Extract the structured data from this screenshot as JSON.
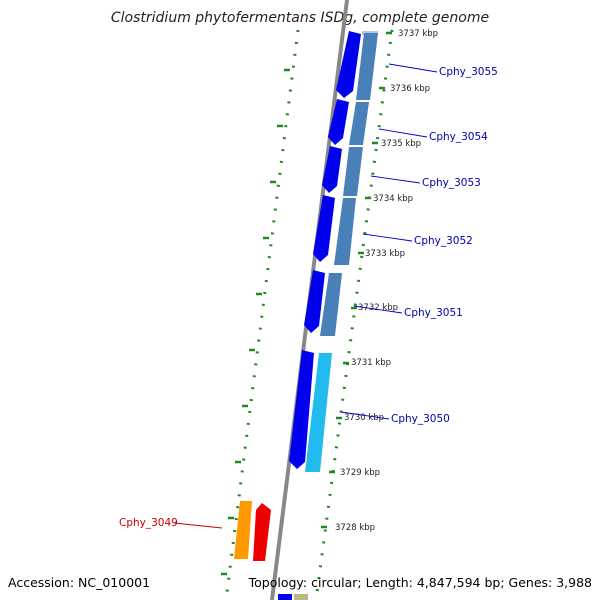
{
  "title": "Clostridium phytofermentans ISDg, complete genome",
  "accession": "Accession: NC_010001",
  "summary": "Topology: circular; Length: 4,847,594 bp; Genes: 3,988",
  "colors": {
    "forward_dark": "#0000ee",
    "reverse_steel": "#4a80b8",
    "reverse_cyan": "#22bbee",
    "highlight_orange": "#ff9900",
    "highlight_red": "#ee0000",
    "backbone": "#888888",
    "tick_green": "#228822",
    "gene_label": "#0000aa",
    "highlight_label": "#cc0000"
  },
  "ticks": [
    "3737 kbp",
    "3736 kbp",
    "3735 kbp",
    "3734 kbp",
    "3733 kbp",
    "3732 kbp",
    "3731 kbp",
    "3730 kbp",
    "3729 kbp",
    "3728 kbp"
  ],
  "genes": [
    {
      "label": "Cphy_3055",
      "highlight": false
    },
    {
      "label": "Cphy_3054",
      "highlight": false
    },
    {
      "label": "Cphy_3053",
      "highlight": false
    },
    {
      "label": "Cphy_3052",
      "highlight": false
    },
    {
      "label": "Cphy_3051",
      "highlight": false
    },
    {
      "label": "Cphy_3050",
      "highlight": false
    },
    {
      "label": "Cphy_3049",
      "highlight": true
    }
  ]
}
